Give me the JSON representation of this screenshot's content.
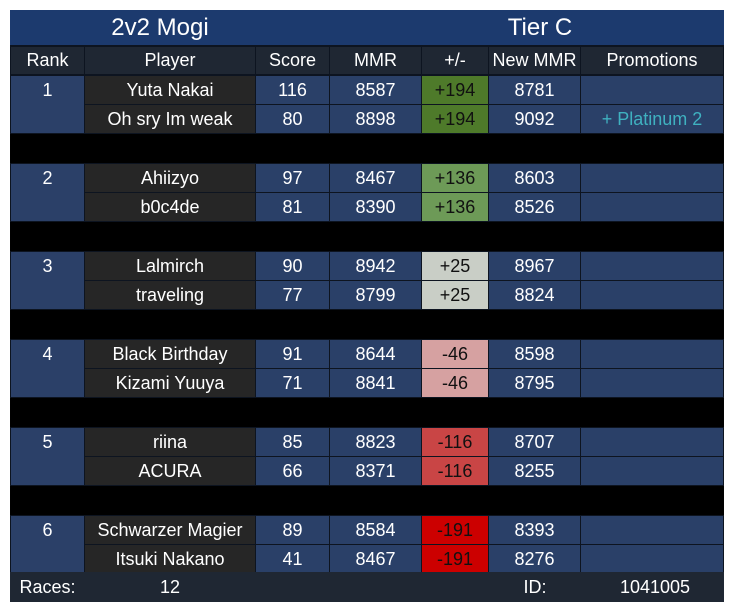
{
  "header": {
    "title": "2v2 Mogi",
    "tier": "Tier C"
  },
  "table": {
    "columns": [
      "Rank",
      "Player",
      "Score",
      "MMR",
      "+/-",
      "New MMR",
      "Promotions"
    ],
    "teams": [
      {
        "rank": "1",
        "delta_color": "#4e7a2a",
        "players": [
          {
            "player": "Yuta Nakai",
            "score": "116",
            "mmr": "8587",
            "delta": "+194",
            "new_mmr": "8781",
            "promotion": null
          },
          {
            "player": "Oh sry Im weak",
            "score": "80",
            "mmr": "8898",
            "delta": "+194",
            "new_mmr": "9092",
            "promotion": "+ Platinum 2"
          }
        ]
      },
      {
        "rank": "2",
        "delta_color": "#6d9a57",
        "players": [
          {
            "player": "Ahiizyo",
            "score": "97",
            "mmr": "8467",
            "delta": "+136",
            "new_mmr": "8603",
            "promotion": null
          },
          {
            "player": "b0c4de",
            "score": "81",
            "mmr": "8390",
            "delta": "+136",
            "new_mmr": "8526",
            "promotion": null
          }
        ]
      },
      {
        "rank": "3",
        "delta_color": "#c9cec6",
        "players": [
          {
            "player": "Lalmirch",
            "score": "90",
            "mmr": "8942",
            "delta": "+25",
            "new_mmr": "8967",
            "promotion": null
          },
          {
            "player": "traveling",
            "score": "77",
            "mmr": "8799",
            "delta": "+25",
            "new_mmr": "8824",
            "promotion": null
          }
        ]
      },
      {
        "rank": "4",
        "delta_color": "#d6a1a1",
        "players": [
          {
            "player": "Black Birthday",
            "score": "91",
            "mmr": "8644",
            "delta": "-46",
            "new_mmr": "8598",
            "promotion": null
          },
          {
            "player": "Kizami Yuuya",
            "score": "71",
            "mmr": "8841",
            "delta": "-46",
            "new_mmr": "8795",
            "promotion": null
          }
        ]
      },
      {
        "rank": "5",
        "delta_color": "#c94545",
        "players": [
          {
            "player": "riina",
            "score": "85",
            "mmr": "8823",
            "delta": "-116",
            "new_mmr": "8707",
            "promotion": null
          },
          {
            "player": "ACURA",
            "score": "66",
            "mmr": "8371",
            "delta": "-116",
            "new_mmr": "8255",
            "promotion": null
          }
        ]
      },
      {
        "rank": "6",
        "delta_color": "#cc0000",
        "players": [
          {
            "player": "Schwarzer Magier",
            "score": "89",
            "mmr": "8584",
            "delta": "-191",
            "new_mmr": "8393",
            "promotion": null
          },
          {
            "player": "Itsuki Nakano",
            "score": "41",
            "mmr": "8467",
            "delta": "-191",
            "new_mmr": "8276",
            "promotion": null
          }
        ]
      }
    ]
  },
  "footer": {
    "races_label": "Races:",
    "races": "12",
    "id_label": "ID:",
    "id": "1041005"
  }
}
